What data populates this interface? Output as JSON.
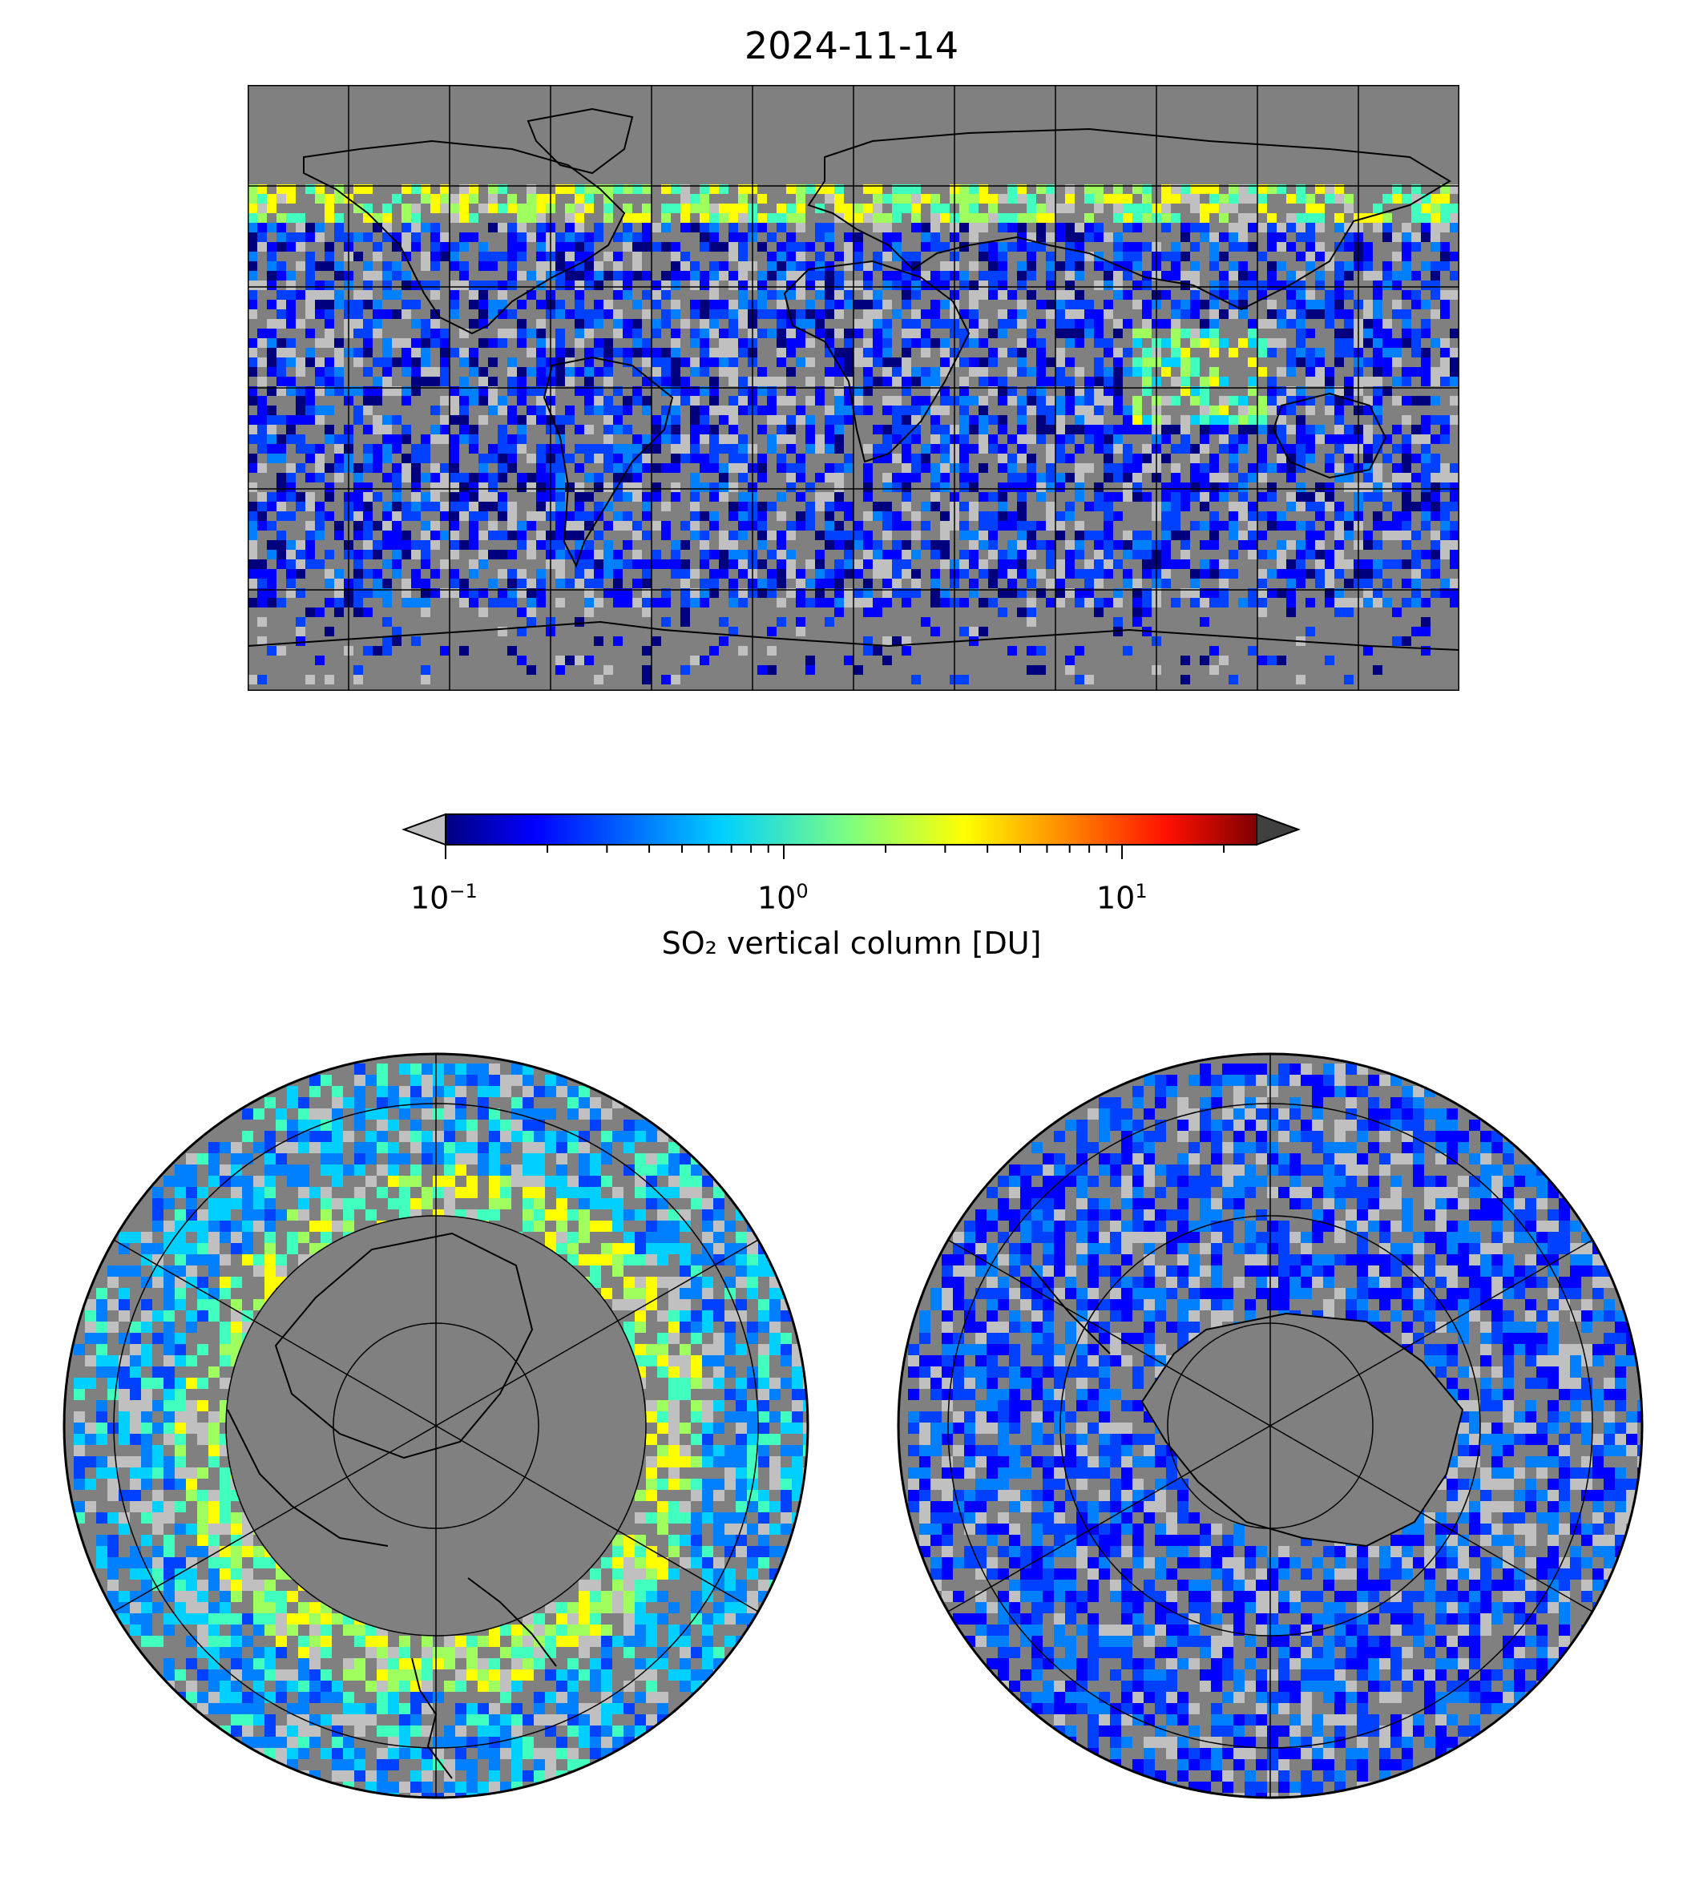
{
  "figure": {
    "title": "2024-11-14",
    "colorbar": {
      "label": "SO₂ vertical column [DU]",
      "scale": "log",
      "range": [
        0.1,
        25
      ],
      "colormap": "jet",
      "under_color": "#c0c0c0",
      "over_color": "#404040",
      "ticks": [
        {
          "base": "10",
          "exp": "−1"
        },
        {
          "base": "10",
          "exp": "0"
        },
        {
          "base": "10",
          "exp": "1"
        }
      ]
    },
    "maps": [
      {
        "projection": "PlateCarree",
        "gridlines_lon_step_deg": 30,
        "gridlines_lat_step_deg": 30
      },
      {
        "projection": "NorthPolarStereo"
      },
      {
        "projection": "SouthPolarStereo"
      }
    ],
    "colors": {
      "no_data": "#808080",
      "coast": "#000000"
    }
  }
}
